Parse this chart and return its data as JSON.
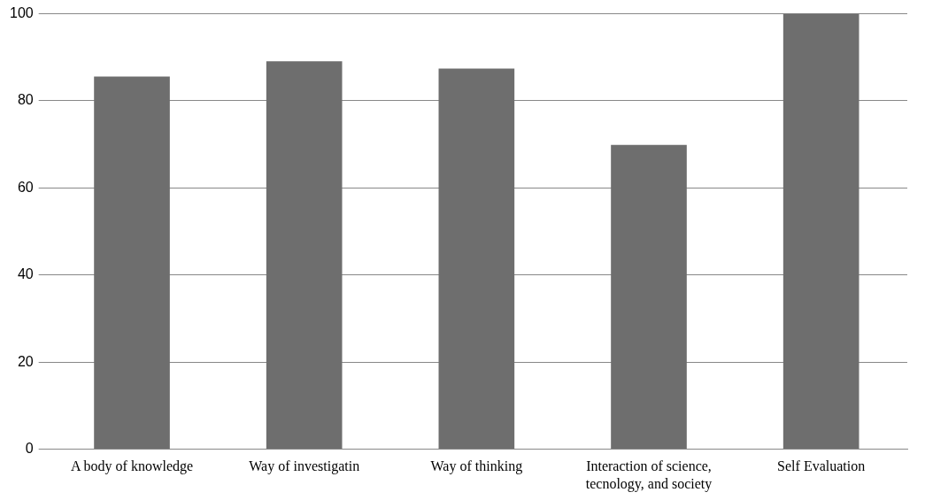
{
  "chart_data": {
    "type": "bar",
    "categories": [
      "A body of knowledge",
      "Way of investigatin",
      "Way of thinking",
      "Interaction of science, tecnology, and society",
      "Self Evaluation"
    ],
    "values": [
      85.6,
      89.1,
      87.4,
      69.9,
      100
    ],
    "color": "#6e6e6e",
    "ylim": [
      0,
      100
    ],
    "yticks": [
      0,
      20,
      40,
      60,
      80,
      100
    ],
    "grid": "y",
    "legend": false
  }
}
